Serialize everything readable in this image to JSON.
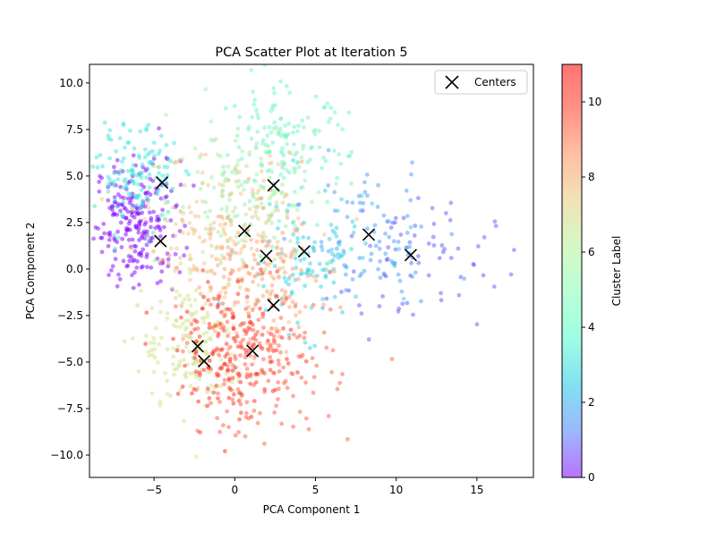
{
  "chart_data": {
    "type": "scatter",
    "title": "PCA Scatter Plot at Iteration 5",
    "xlabel": "PCA Component 1",
    "ylabel": "PCA Component 2",
    "xlim": [
      -9.0,
      18.5
    ],
    "ylim": [
      -11.2,
      11.0
    ],
    "xticks": [
      -5,
      0,
      5,
      10,
      15
    ],
    "yticks": [
      -10.0,
      -7.5,
      -5.0,
      -2.5,
      0.0,
      2.5,
      5.0,
      7.5,
      10.0
    ],
    "grid": false,
    "legend": {
      "placement": "top-right",
      "entries": [
        {
          "label": "Centers",
          "marker": "x",
          "color": "#000000"
        }
      ]
    },
    "colorbar": {
      "label": "Cluster Label",
      "range": [
        0,
        11
      ],
      "ticks": [
        0,
        2,
        4,
        6,
        8,
        10
      ],
      "colormap": "rainbow",
      "stops": [
        "#8000ff",
        "#4c7df9",
        "#19c7e8",
        "#4dfbcd",
        "#7ffeb6",
        "#b2f396",
        "#e5cc7b",
        "#ff8d5d",
        "#ff3a1f",
        "#ff0000"
      ]
    },
    "point_alpha": 0.5,
    "centers": [
      {
        "x": -4.5,
        "y": 4.65
      },
      {
        "x": 2.4,
        "y": 4.5
      },
      {
        "x": 0.6,
        "y": 2.05
      },
      {
        "x": -4.6,
        "y": 1.5
      },
      {
        "x": 1.95,
        "y": 0.7
      },
      {
        "x": 4.3,
        "y": 0.95
      },
      {
        "x": 8.3,
        "y": 1.85
      },
      {
        "x": 10.9,
        "y": 0.75
      },
      {
        "x": 2.4,
        "y": -1.95
      },
      {
        "x": -2.3,
        "y": -4.15
      },
      {
        "x": -1.9,
        "y": -4.95
      },
      {
        "x": 1.1,
        "y": -4.4
      }
    ],
    "clusters": [
      {
        "label": 0,
        "color": "#8000ff",
        "center": [
          -6.0,
          2.5
        ],
        "sd": [
          1.3,
          1.7
        ],
        "count": 230
      },
      {
        "label": 1,
        "color": "#5a5cff",
        "center": [
          11.0,
          0.5
        ],
        "sd": [
          2.6,
          1.8
        ],
        "count": 70
      },
      {
        "label": 2,
        "color": "#4c9bf3",
        "center": [
          8.5,
          1.5
        ],
        "sd": [
          2.2,
          1.8
        ],
        "count": 80
      },
      {
        "label": 3,
        "color": "#2fd0e6",
        "center": [
          4.5,
          0.5
        ],
        "sd": [
          2.2,
          1.8
        ],
        "count": 110
      },
      {
        "label": 4,
        "color": "#3ee6dc",
        "center": [
          -6.0,
          5.0
        ],
        "sd": [
          1.2,
          1.3
        ],
        "count": 130
      },
      {
        "label": 5,
        "color": "#6df5c4",
        "center": [
          3.0,
          6.5
        ],
        "sd": [
          2.0,
          1.6
        ],
        "count": 140
      },
      {
        "label": 6,
        "color": "#9fefa6",
        "center": [
          1.0,
          4.0
        ],
        "sd": [
          2.5,
          2.0
        ],
        "count": 150
      },
      {
        "label": 7,
        "color": "#cde48e",
        "center": [
          -2.5,
          -4.0
        ],
        "sd": [
          1.6,
          1.8
        ],
        "count": 170
      },
      {
        "label": 8,
        "color": "#f0c58a",
        "center": [
          -1.0,
          2.0
        ],
        "sd": [
          2.4,
          2.0
        ],
        "count": 160
      },
      {
        "label": 9,
        "color": "#ff9e6a",
        "center": [
          1.5,
          -0.5
        ],
        "sd": [
          2.2,
          1.9
        ],
        "count": 150
      },
      {
        "label": 10,
        "color": "#ff5a3e",
        "center": [
          1.5,
          -5.0
        ],
        "sd": [
          2.3,
          2.0
        ],
        "count": 170
      },
      {
        "label": 11,
        "color": "#ff2a1a",
        "center": [
          0.0,
          -4.5
        ],
        "sd": [
          1.8,
          1.8
        ],
        "count": 150
      }
    ]
  }
}
